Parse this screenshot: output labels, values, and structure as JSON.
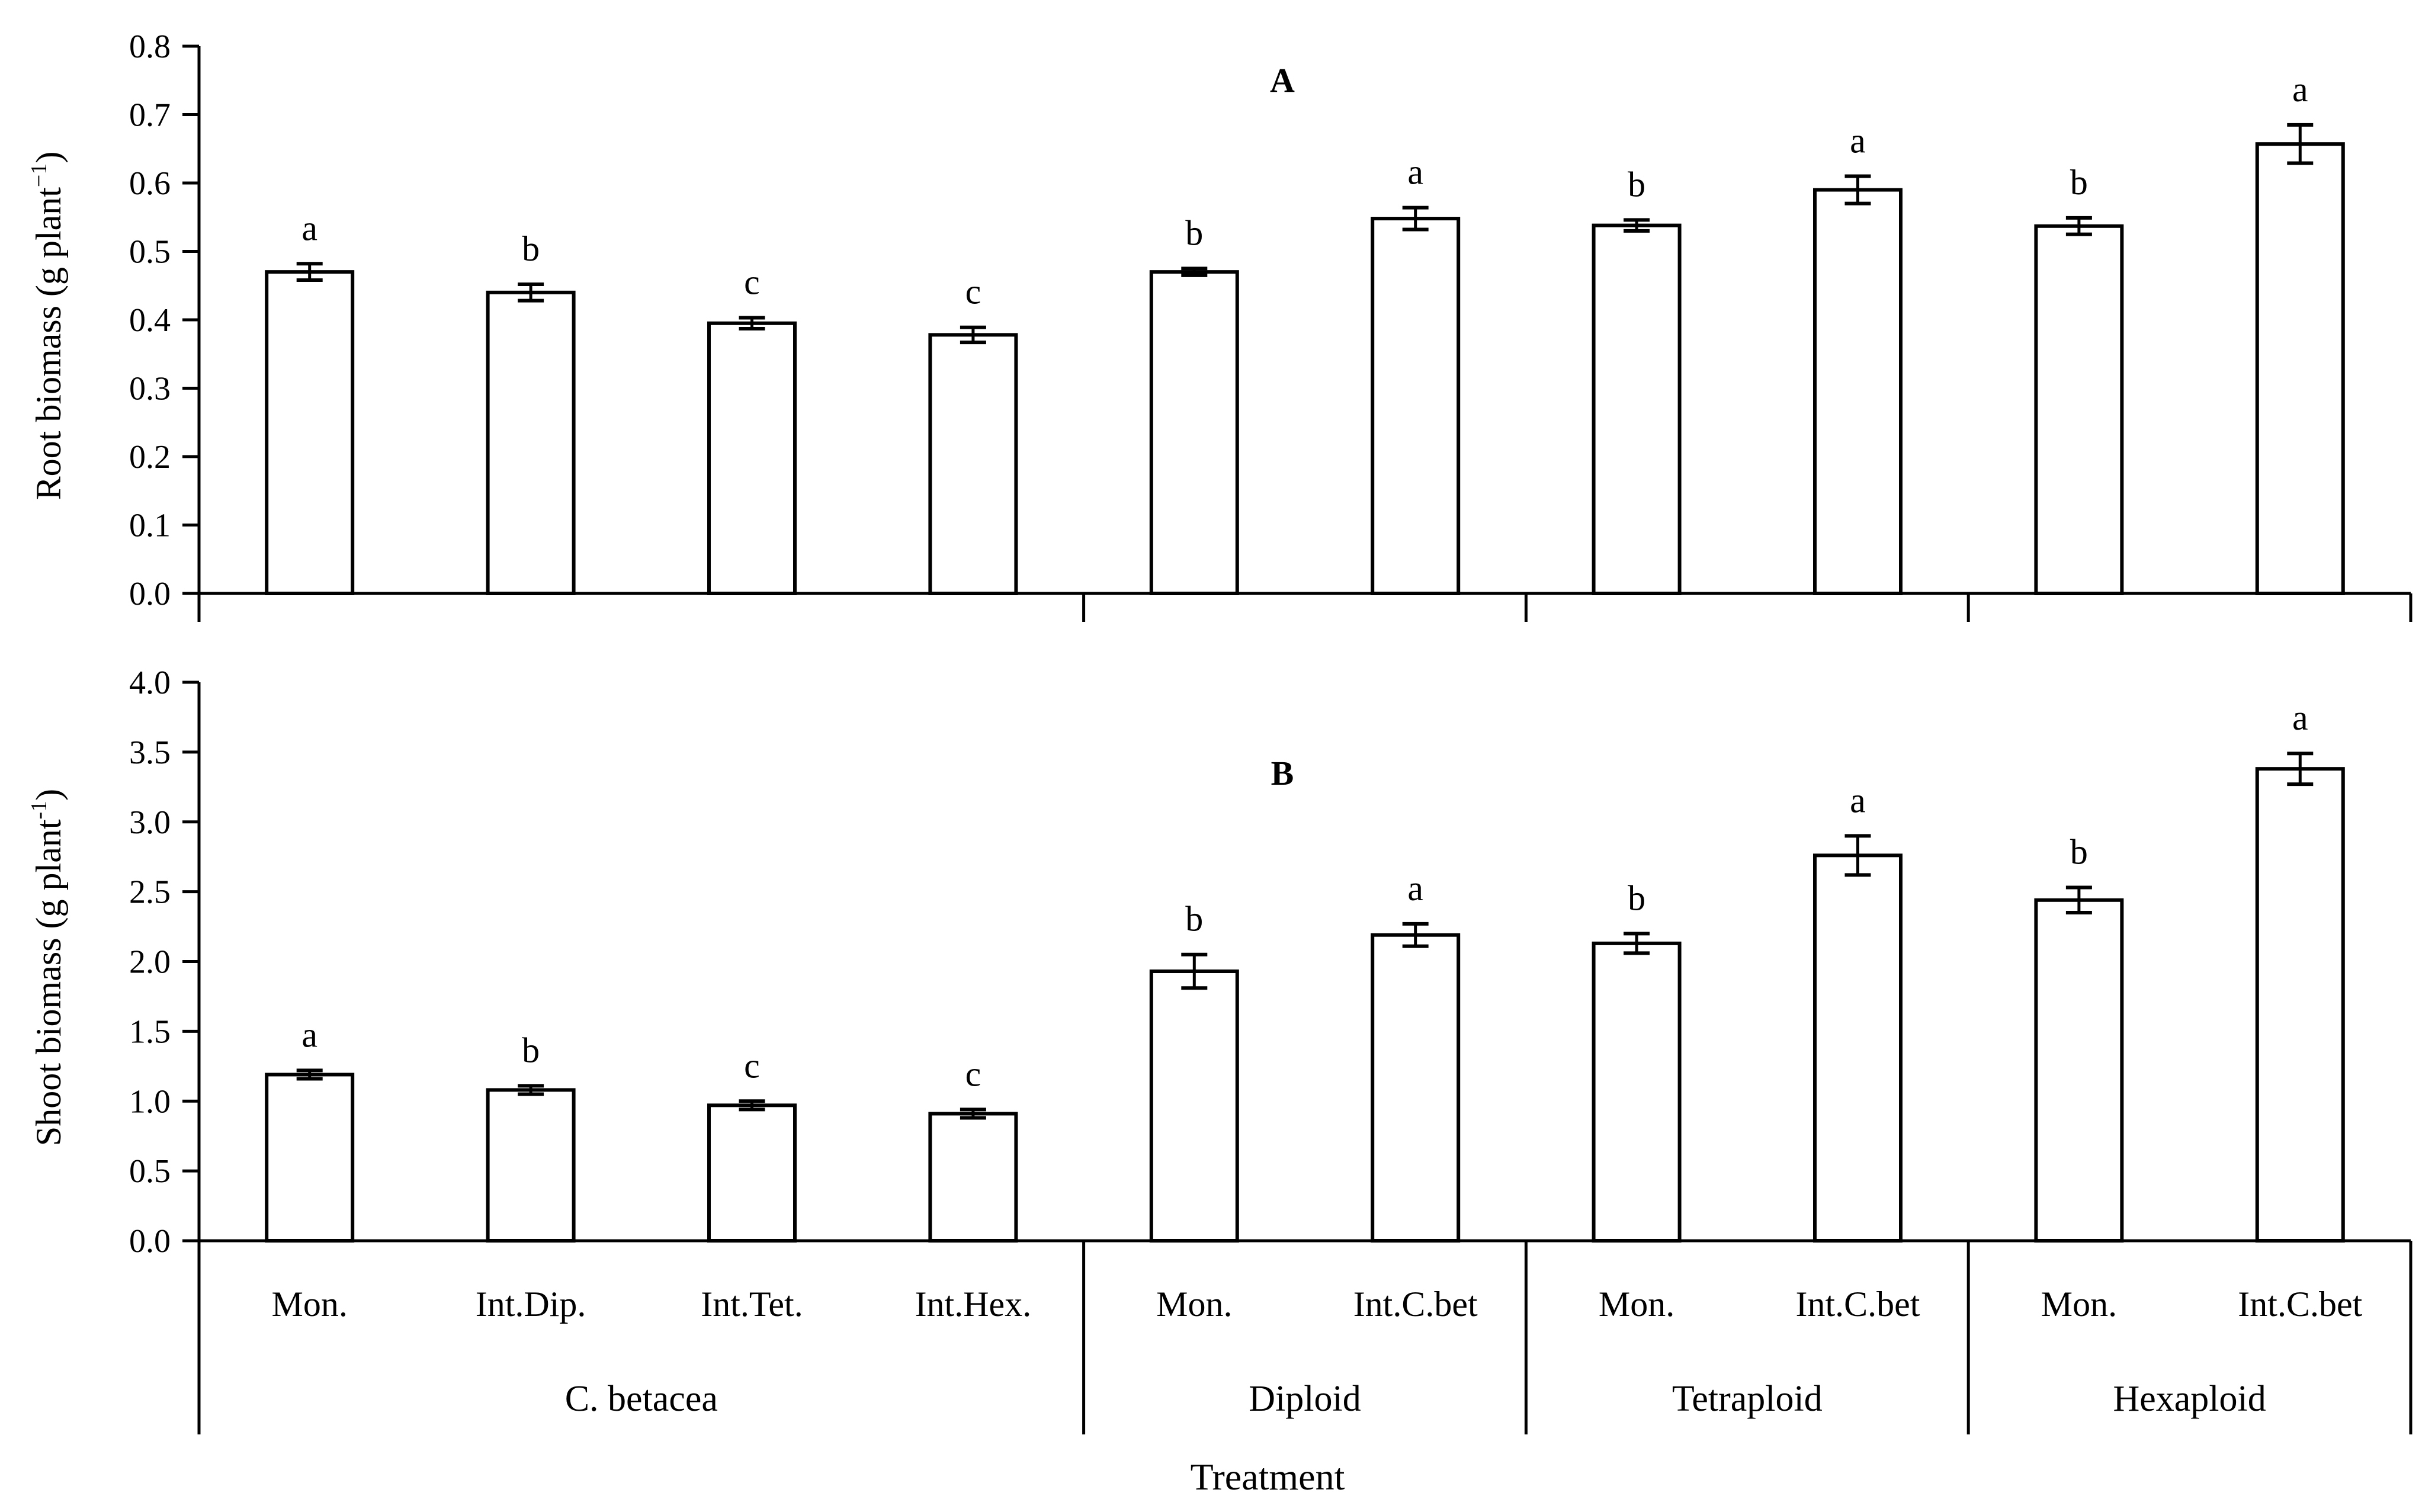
{
  "chart_data": [
    {
      "type": "bar",
      "panel": "A",
      "title": "A",
      "ylabel": "Root biomass (g plant",
      "ylabel_sup": "−1",
      "ylabel_end": ")",
      "ylim": [
        0,
        0.8
      ],
      "yticks": [
        "0.0",
        "0.1",
        "0.2",
        "0.3",
        "0.4",
        "0.5",
        "0.6",
        "0.7",
        "0.8"
      ],
      "values": [
        0.47,
        0.44,
        0.395,
        0.378,
        0.47,
        0.548,
        0.538,
        0.59,
        0.537,
        0.657
      ],
      "errors": [
        0.012,
        0.012,
        0.008,
        0.011,
        0.005,
        0.016,
        0.008,
        0.02,
        0.012,
        0.028
      ],
      "significance": [
        "a",
        "b",
        "c",
        "c",
        "b",
        "a",
        "b",
        "a",
        "b",
        "a"
      ]
    },
    {
      "type": "bar",
      "panel": "B",
      "title": "B",
      "ylabel": "Shoot biomass (g plant",
      "ylabel_sup": "-1",
      "ylabel_end": ")",
      "ylim": [
        0,
        4.0
      ],
      "yticks": [
        "0.0",
        "0.5",
        "1.0",
        "1.5",
        "2.0",
        "2.5",
        "3.0",
        "3.5",
        "4.0"
      ],
      "values": [
        1.19,
        1.08,
        0.97,
        0.91,
        1.93,
        2.19,
        2.13,
        2.76,
        2.44,
        3.38
      ],
      "errors": [
        0.03,
        0.03,
        0.03,
        0.03,
        0.12,
        0.08,
        0.07,
        0.14,
        0.09,
        0.11
      ],
      "significance": [
        "a",
        "b",
        "c",
        "c",
        "b",
        "a",
        "b",
        "a",
        "b",
        "a"
      ]
    }
  ],
  "categories": [
    "Mon.",
    "Int.Dip.",
    "Int.Tet.",
    "Int.Hex.",
    "Mon.",
    "Int.C.bet",
    "Mon.",
    "Int.C.bet",
    "Mon.",
    "Int.C.bet"
  ],
  "groups": [
    {
      "label": "C. betacea",
      "count": 4
    },
    {
      "label": "Diploid",
      "count": 2
    },
    {
      "label": "Tetraploid",
      "count": 2
    },
    {
      "label": "Hexaploid",
      "count": 2
    }
  ],
  "xlabel": "Treatment",
  "colors": {
    "bar_fill": "#ffffff",
    "stroke": "#000000"
  }
}
